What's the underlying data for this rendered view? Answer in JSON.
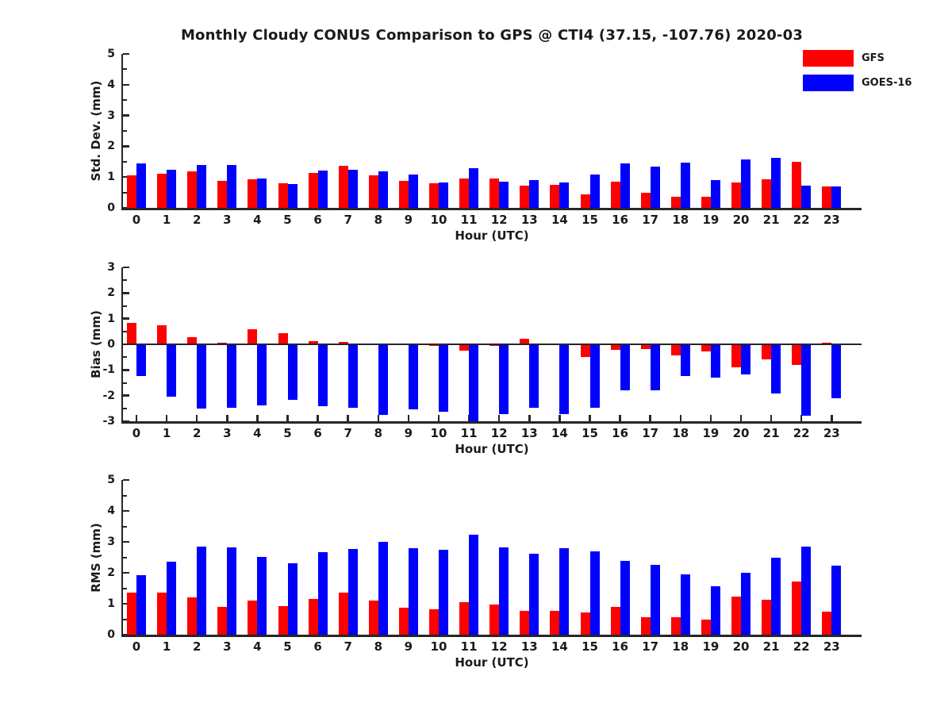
{
  "title": "Monthly Cloudy CONUS Comparison to GPS @ CTI4 (37.15, -107.76) 2020-03",
  "legend": {
    "position": "top-right",
    "items": [
      {
        "label": "GFS",
        "color": "#ff0000"
      },
      {
        "label": "GOES-16",
        "color": "#0000ff"
      }
    ]
  },
  "chart_data": [
    {
      "type": "bar",
      "panel": "std-dev",
      "ylabel": "Std. Dev. (mm)",
      "xlabel": "Hour (UTC)",
      "ylim": [
        0,
        5
      ],
      "yticks": [
        0,
        1,
        2,
        3,
        4,
        5
      ],
      "grid": false,
      "categories": [
        "0",
        "1",
        "2",
        "3",
        "4",
        "5",
        "6",
        "7",
        "8",
        "9",
        "10",
        "11",
        "12",
        "13",
        "14",
        "15",
        "16",
        "17",
        "18",
        "19",
        "20",
        "21",
        "22",
        "23"
      ],
      "series": [
        {
          "name": "GFS",
          "color": "#ff0000",
          "values": [
            1.05,
            1.12,
            1.18,
            0.88,
            0.93,
            0.8,
            1.14,
            1.36,
            1.05,
            0.88,
            0.8,
            0.95,
            0.96,
            0.72,
            0.76,
            0.45,
            0.86,
            0.5,
            0.36,
            0.36,
            0.83,
            0.93,
            1.5,
            0.7
          ]
        },
        {
          "name": "GOES-16",
          "color": "#0000ff",
          "values": [
            1.45,
            1.23,
            1.38,
            1.38,
            0.96,
            0.78,
            1.2,
            1.25,
            1.18,
            1.08,
            0.82,
            1.28,
            0.84,
            0.9,
            0.82,
            1.08,
            1.45,
            1.34,
            1.47,
            0.9,
            1.58,
            1.62,
            0.72,
            0.7
          ]
        }
      ]
    },
    {
      "type": "bar",
      "panel": "bias",
      "ylabel": "Bias (mm)",
      "xlabel": "Hour (UTC)",
      "ylim": [
        -3,
        3
      ],
      "yticks": [
        -3,
        -2,
        -1,
        0,
        1,
        2,
        3
      ],
      "grid": false,
      "categories": [
        "0",
        "1",
        "2",
        "3",
        "4",
        "5",
        "6",
        "7",
        "8",
        "9",
        "10",
        "11",
        "12",
        "13",
        "14",
        "15",
        "16",
        "17",
        "18",
        "19",
        "20",
        "21",
        "22",
        "23"
      ],
      "series": [
        {
          "name": "GFS",
          "color": "#ff0000",
          "values": [
            0.85,
            0.75,
            0.27,
            0.05,
            0.58,
            0.44,
            0.12,
            0.08,
            0.02,
            0.02,
            -0.05,
            -0.25,
            -0.07,
            0.22,
            -0.04,
            -0.5,
            -0.21,
            -0.19,
            -0.42,
            -0.27,
            -0.9,
            -0.58,
            -0.81,
            0.07
          ]
        },
        {
          "name": "GOES-16",
          "color": "#0000ff",
          "values": [
            -1.25,
            -2.05,
            -2.5,
            -2.48,
            -2.37,
            -2.17,
            -2.4,
            -2.48,
            -2.76,
            -2.55,
            -2.62,
            -3.0,
            -2.72,
            -2.47,
            -2.71,
            -2.48,
            -1.8,
            -1.78,
            -1.23,
            -1.3,
            -1.18,
            -1.93,
            -2.77,
            -2.11
          ]
        }
      ]
    },
    {
      "type": "bar",
      "panel": "rms",
      "ylabel": "RMS (mm)",
      "xlabel": "Hour (UTC)",
      "ylim": [
        0,
        5
      ],
      "yticks": [
        0,
        1,
        2,
        3,
        4,
        5
      ],
      "grid": false,
      "categories": [
        "0",
        "1",
        "2",
        "3",
        "4",
        "5",
        "6",
        "7",
        "8",
        "9",
        "10",
        "11",
        "12",
        "13",
        "14",
        "15",
        "16",
        "17",
        "18",
        "19",
        "20",
        "21",
        "22",
        "23"
      ],
      "series": [
        {
          "name": "GFS",
          "color": "#ff0000",
          "values": [
            1.35,
            1.35,
            1.2,
            0.9,
            1.1,
            0.92,
            1.15,
            1.37,
            1.1,
            0.87,
            0.83,
            1.04,
            0.97,
            0.76,
            0.78,
            0.72,
            0.9,
            0.56,
            0.56,
            0.5,
            1.22,
            1.12,
            1.72,
            0.74
          ]
        },
        {
          "name": "GOES-16",
          "color": "#0000ff",
          "values": [
            1.93,
            2.37,
            2.85,
            2.83,
            2.52,
            2.32,
            2.67,
            2.78,
            3.01,
            2.8,
            2.75,
            3.22,
            2.83,
            2.61,
            2.8,
            2.68,
            2.38,
            2.25,
            1.95,
            1.57,
            2.01,
            2.5,
            2.85,
            2.23
          ]
        }
      ]
    }
  ]
}
